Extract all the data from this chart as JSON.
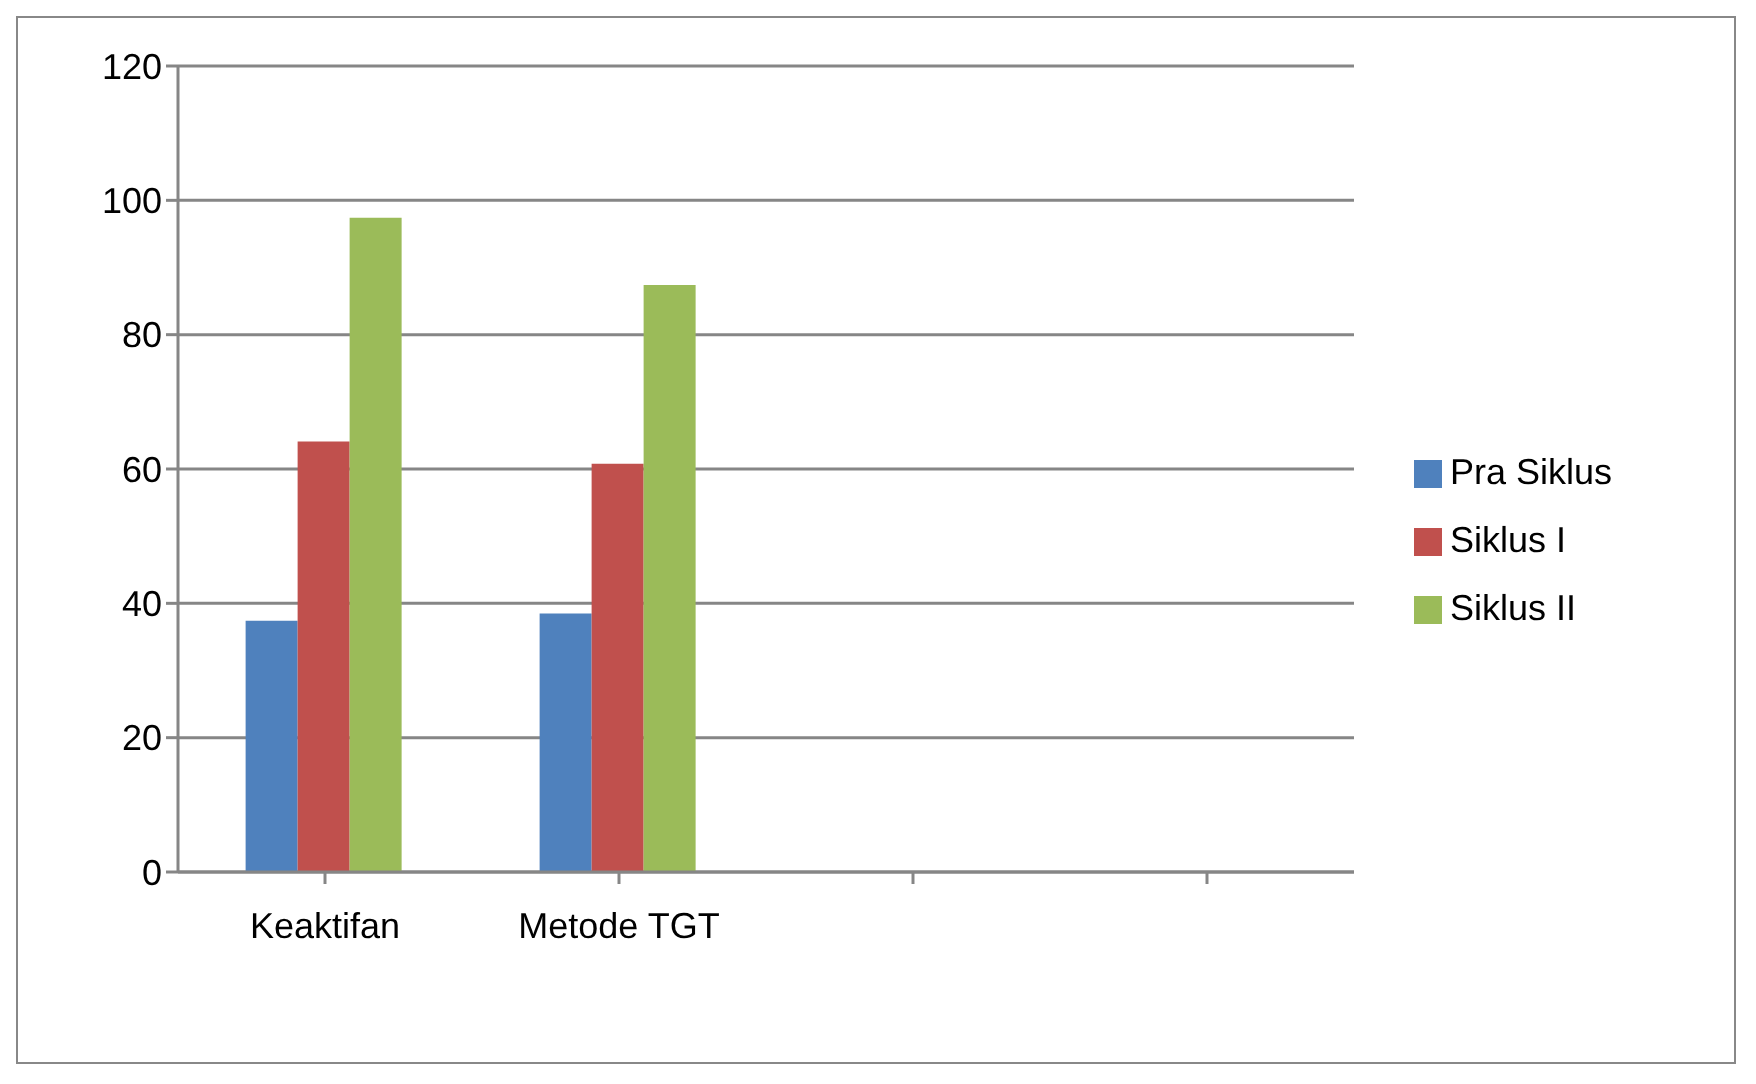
{
  "chart_data": {
    "type": "bar",
    "categories": [
      "Keaktifan",
      "Metode TGT",
      null,
      null
    ],
    "series": [
      {
        "name": "Pra Siklus",
        "color": "#4f81bd",
        "values": [
          37.4,
          38.5,
          null,
          null
        ]
      },
      {
        "name": "Siklus I",
        "color": "#c0504d",
        "values": [
          64.1,
          60.8,
          null,
          null
        ]
      },
      {
        "name": "Siklus II",
        "color": "#9bbb59",
        "values": [
          97.4,
          87.4,
          null,
          null
        ]
      }
    ],
    "ylim": [
      0,
      120
    ],
    "yticks": [
      0,
      20,
      40,
      60,
      80,
      100,
      120
    ],
    "grid": "y",
    "legend": "right"
  }
}
